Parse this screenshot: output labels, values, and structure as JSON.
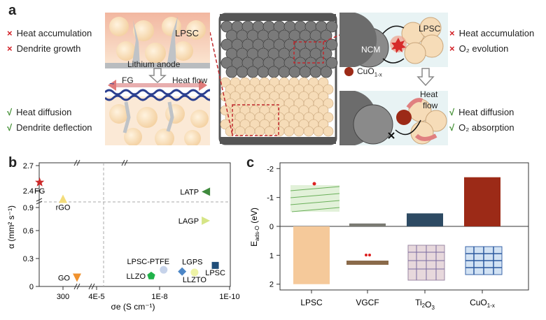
{
  "panel_a": {
    "letter": "a",
    "left_top": [
      "Heat accumulation",
      "Dendrite growth"
    ],
    "left_bottom": [
      "Heat diffusion",
      "Dendrite deflection"
    ],
    "lpsc": "LPSC",
    "anode": "Lithium anode",
    "fg": "FG",
    "heat_flow": "Heat flow",
    "right_top": [
      "Heat accumulation",
      "O₂ evolution"
    ],
    "right_bottom": [
      "Heat diffusion",
      "O₂ absorption"
    ],
    "ncm": "NCM",
    "lpsc_right": "LPSC",
    "cuo_label": "CuO",
    "cuo_sub": "1-x",
    "heat": "Heat",
    "flow": "flow",
    "cross_mark": "×",
    "check_mark": "√"
  },
  "chart_data": [
    {
      "type": "scatter",
      "panel": "b",
      "xlabel": "σe (S cm⁻¹)",
      "ylabel": "α (mm² s⁻¹)",
      "x_scale": "log (reversed, broken)",
      "x_ticks": [
        "300",
        "4E-5",
        "1E-8",
        "1E-10"
      ],
      "y_ticks": [
        "0",
        "0.3",
        "0.6",
        "0.9",
        "2.4",
        "2.7"
      ],
      "points": [
        {
          "label": "FG",
          "x": 0.01,
          "y": 2.5,
          "marker": "star",
          "color": "#cc2a2a"
        },
        {
          "label": "rGO",
          "x": 300,
          "y": 1.0,
          "marker": "triangle-up",
          "color": "#f3dc7a"
        },
        {
          "label": "GO",
          "x": 3.0,
          "y": 0.1,
          "marker": "triangle-down",
          "color": "#f0922e"
        },
        {
          "label": "LATP",
          "x": 1e-09,
          "y": 1.08,
          "marker": "triangle-left",
          "color": "#3f8a3d"
        },
        {
          "label": "LAGP",
          "x": 1e-09,
          "y": 0.75,
          "marker": "triangle-right",
          "color": "#d6e586"
        },
        {
          "label": "LPSC-PTFE",
          "x": 6e-08,
          "y": 0.19,
          "marker": "circle",
          "color": "#c6d3ea"
        },
        {
          "label": "LGPS",
          "x": 1e-08,
          "y": 0.17,
          "marker": "diamond",
          "color": "#4c86c6"
        },
        {
          "label": "LLZO",
          "x": 2e-07,
          "y": 0.12,
          "marker": "pentagon",
          "color": "#21b24a"
        },
        {
          "label": "LLZTO",
          "x": 3e-09,
          "y": 0.16,
          "marker": "circle",
          "color": "#eef3a6"
        },
        {
          "label": "LPSC",
          "x": 4e-10,
          "y": 0.24,
          "marker": "square",
          "color": "#1f4e79"
        }
      ]
    },
    {
      "type": "bar",
      "panel": "c",
      "categories": [
        "LPSC",
        "VGCF",
        "Ti₂O₃",
        "CuO1-x"
      ],
      "values": [
        2.0,
        -0.1,
        -0.45,
        -1.7
      ],
      "colors": [
        "#f5c99a",
        "#7a7a72",
        "#2d4a63",
        "#9c2a17"
      ],
      "ylabel": "Eads-O (eV)",
      "ylim": [
        2.2,
        -2.2
      ],
      "y_ticks": [
        "-2",
        "-1",
        "0",
        "1",
        "2"
      ]
    }
  ],
  "panel_b_letter": "b",
  "panel_c_letter": "c",
  "c_xlabels": {
    "lpsc": "LPSC",
    "vgcf": "VGCF",
    "ti": "Ti",
    "ti_sub": "2",
    "ti_o": "O",
    "ti_sub2": "3",
    "cuo": "CuO",
    "cuo_sub": "1-x"
  }
}
